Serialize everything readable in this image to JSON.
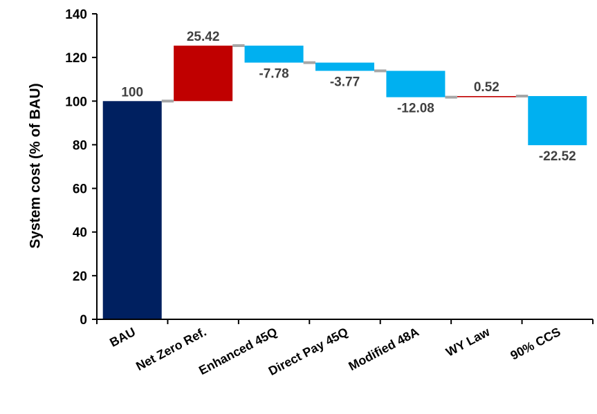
{
  "chart_data": {
    "type": "bar",
    "subtype": "waterfall",
    "title": "",
    "xlabel": "",
    "ylabel": "System cost (% of BAU)",
    "ylim": [
      0,
      140
    ],
    "yticks": [
      0,
      20,
      40,
      60,
      80,
      100,
      120,
      140
    ],
    "grid": false,
    "legend": "none",
    "categories": [
      "BAU",
      "Net Zero Ref.",
      "Enhanced 45Q",
      "Direct Pay 45Q",
      "Modified 48A",
      "WY Law",
      "90% CCS"
    ],
    "values": [
      100,
      25.42,
      -7.78,
      -3.77,
      -12.08,
      0.52,
      -22.52
    ],
    "data_labels": [
      "100",
      "25.42",
      "-7.78",
      "-3.77",
      "-12.08",
      "0.52",
      "-22.52"
    ],
    "colors": {
      "base": "#002060",
      "increase": "#C00000",
      "decrease": "#00B0F0",
      "connector": "#A6A6A6",
      "axis": "#000000",
      "label": "#404040"
    }
  }
}
